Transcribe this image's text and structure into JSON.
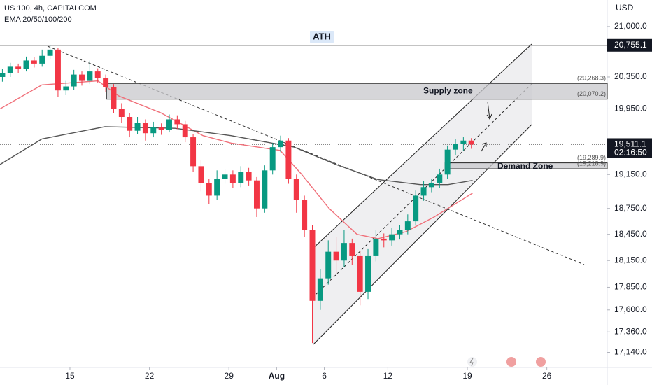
{
  "chart_data": {
    "type": "candlestick",
    "title": "US 100, 4h, CAPITALCOM",
    "indicator": "EMA 20/50/100/200",
    "currency": "USD",
    "log_scale": true,
    "xlim": [
      -4.4,
      33.8
    ],
    "ylim": [
      16980,
      21350
    ],
    "xticks": [
      {
        "value": 0,
        "label": "15"
      },
      {
        "value": 5,
        "label": "22"
      },
      {
        "value": 10,
        "label": "29"
      },
      {
        "value": 13,
        "label": "Aug"
      },
      {
        "value": 16,
        "label": "6"
      },
      {
        "value": 20,
        "label": "12"
      },
      {
        "value": 25,
        "label": "19"
      },
      {
        "value": 30,
        "label": "26"
      }
    ],
    "yticks": [
      {
        "value": 21000,
        "label": "21,000.0"
      },
      {
        "value": 20350,
        "label": "20,350.0"
      },
      {
        "value": 19950,
        "label": "19,950.0"
      },
      {
        "value": 19150,
        "label": "19,150.0"
      },
      {
        "value": 18750,
        "label": "18,750.0"
      },
      {
        "value": 18450,
        "label": "18,450.0"
      },
      {
        "value": 18150,
        "label": "18,150.0"
      },
      {
        "value": 17850,
        "label": "17,850.0"
      },
      {
        "value": 17600,
        "label": "17,600.0"
      },
      {
        "value": 17360,
        "label": "17,360.0"
      },
      {
        "value": 17140,
        "label": "17,140.0"
      }
    ],
    "up_color": "#089981",
    "down_color": "#f23645",
    "x": [
      -4.25,
      -3.75,
      -3.25,
      -2.75,
      -2.25,
      -1.75,
      -1.25,
      -0.75,
      -0.25,
      0.25,
      0.75,
      1.25,
      1.75,
      2.25,
      2.75,
      3.25,
      3.75,
      4.25,
      4.75,
      5.25,
      5.75,
      6.25,
      6.75,
      7.25,
      7.75,
      8.25,
      8.75,
      9.25,
      9.75,
      10.25,
      10.75,
      11.25,
      11.75,
      12.25,
      12.75,
      13.25,
      13.75,
      14.25,
      14.75,
      15.25,
      15.75,
      16.25,
      16.75,
      17.25,
      17.75,
      18.25,
      18.75,
      19.25,
      19.75,
      20.25,
      20.75,
      21.25,
      21.75,
      22.25,
      22.75,
      23.25,
      23.75,
      24.25,
      24.75,
      25.25
    ],
    "open": [
      20350,
      20400,
      20480,
      20450,
      20560,
      20520,
      20620,
      20700,
      20180,
      20230,
      20380,
      20300,
      20420,
      20340,
      20220,
      19950,
      19850,
      19680,
      19780,
      19650,
      19720,
      19690,
      19820,
      19760,
      19600,
      19250,
      19050,
      18900,
      19100,
      19150,
      19050,
      19180,
      19080,
      18750,
      19200,
      19480,
      19560,
      19100,
      18850,
      18500,
      17700,
      17950,
      18250,
      18150,
      18350,
      18200,
      17800,
      18200,
      18400,
      18380,
      18450,
      18500,
      18600,
      18900,
      19000,
      19050,
      19150,
      19450,
      19520,
      19560
    ],
    "high": [
      20450,
      20530,
      20520,
      20610,
      20600,
      20700,
      20755.1,
      20720,
      20300,
      20440,
      20420,
      20560,
      20460,
      20380,
      20260,
      20020,
      19900,
      19850,
      19820,
      19790,
      19770,
      19880,
      19870,
      19800,
      19640,
      19320,
      19100,
      19200,
      19220,
      19200,
      19250,
      19230,
      19120,
      19260,
      19530,
      19620,
      19590,
      19150,
      18900,
      18560,
      18050,
      18380,
      18420,
      18500,
      18400,
      18260,
      18280,
      18500,
      18460,
      18520,
      18560,
      18680,
      18960,
      19070,
      19100,
      19220,
      19500,
      19580,
      19600,
      19590
    ],
    "low": [
      20290,
      20350,
      20400,
      20420,
      20470,
      20480,
      20580,
      20100,
      20120,
      20190,
      20240,
      20260,
      20280,
      20160,
      19900,
      19780,
      19600,
      19640,
      19560,
      19600,
      19630,
      19660,
      19700,
      19540,
      19180,
      18950,
      18800,
      18850,
      19040,
      18990,
      19000,
      19020,
      18650,
      18700,
      19150,
      19420,
      19040,
      18700,
      18420,
      17240,
      17600,
      17880,
      18000,
      18080,
      18100,
      17650,
      17720,
      18140,
      18300,
      18320,
      18390,
      18450,
      18550,
      18840,
      18940,
      18990,
      19100,
      19380,
      19440,
      19460
    ],
    "close": [
      20400,
      20480,
      20450,
      20560,
      20520,
      20620,
      20700,
      20180,
      20230,
      20380,
      20300,
      20420,
      20340,
      20220,
      19950,
      19850,
      19680,
      19780,
      19650,
      19720,
      19690,
      19820,
      19760,
      19600,
      19250,
      19050,
      18900,
      19100,
      19150,
      19050,
      19180,
      19080,
      18750,
      19200,
      19480,
      19560,
      19100,
      18850,
      18500,
      17700,
      17950,
      18250,
      18150,
      18350,
      18200,
      17800,
      18200,
      18400,
      18380,
      18450,
      18500,
      18600,
      18900,
      19000,
      19050,
      19150,
      19450,
      19520,
      19560,
      19511.1
    ],
    "ema_lines": [
      {
        "color": "#f0707a",
        "x": [
          -4.4,
          -1.76,
          1.76,
          3.08,
          5.73,
          8.37,
          10.13,
          13.22,
          14.54,
          16.3,
          18.06,
          19.38,
          21.15,
          22.91,
          25.33
        ],
        "values": [
          19950,
          20250,
          20300,
          20110,
          19900,
          19620,
          19530,
          19440,
          19160,
          18750,
          18450,
          18400,
          18480,
          18650,
          18930
        ]
      },
      {
        "color": "#555555",
        "x": [
          -4.4,
          -1.76,
          2.2,
          6.61,
          10.13,
          14.1,
          16.74,
          19.38,
          22.03,
          23.79,
          25.33
        ],
        "values": [
          19270,
          19580,
          19730,
          19710,
          19620,
          19480,
          19270,
          19090,
          19030,
          19030,
          19080
        ]
      }
    ],
    "ath": {
      "label": "ATH",
      "value": 20755.1,
      "value_label": "20,755.1"
    },
    "current": {
      "value": 19511.1,
      "label": "19,511.1",
      "countdown": "02:16:50"
    },
    "zones": [
      {
        "label": "Supply zone",
        "x_start": 2.3,
        "top": 20268.3,
        "bottom": 20070.2,
        "top_label": "(20,268.3)",
        "bottom_label": "(20,070.2)"
      },
      {
        "label": "Demand Zone",
        "x_start": 23.6,
        "top": 19289.9,
        "bottom": 19218.9,
        "top_label": "(19,289.9)",
        "bottom_label": "(19,218.9)"
      }
    ]
  }
}
